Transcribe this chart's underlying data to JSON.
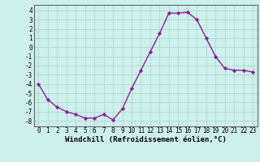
{
  "x": [
    0,
    1,
    2,
    3,
    4,
    5,
    6,
    7,
    8,
    9,
    10,
    11,
    12,
    13,
    14,
    15,
    16,
    17,
    18,
    19,
    20,
    21,
    22,
    23
  ],
  "y": [
    -4.0,
    -5.7,
    -6.5,
    -7.0,
    -7.3,
    -7.7,
    -7.7,
    -7.3,
    -7.9,
    -6.7,
    -4.5,
    -2.5,
    -0.5,
    1.5,
    3.7,
    3.7,
    3.8,
    3.0,
    1.0,
    -1.0,
    -2.3,
    -2.5,
    -2.5,
    -2.7
  ],
  "bg_color": "#cdf0ed",
  "line_color": "#882299",
  "marker": "D",
  "marker_size": 2.2,
  "line_width": 1.0,
  "grid_color": "#b0d8d0",
  "xlabel": "Windchill (Refroidissement éolien,°C)",
  "xlabel_fontsize": 6.5,
  "yticks": [
    -8,
    -7,
    -6,
    -5,
    -4,
    -3,
    -2,
    -1,
    0,
    1,
    2,
    3,
    4
  ],
  "xtick_labels": [
    "0",
    "1",
    "2",
    "3",
    "4",
    "5",
    "6",
    "7",
    "8",
    "9",
    "10",
    "11",
    "12",
    "13",
    "14",
    "15",
    "16",
    "17",
    "18",
    "19",
    "20",
    "21",
    "22",
    "23"
  ],
  "tick_fontsize": 5.5,
  "ylim": [
    -8.6,
    4.6
  ],
  "xlim": [
    -0.5,
    23.5
  ],
  "spine_color": "#666666"
}
